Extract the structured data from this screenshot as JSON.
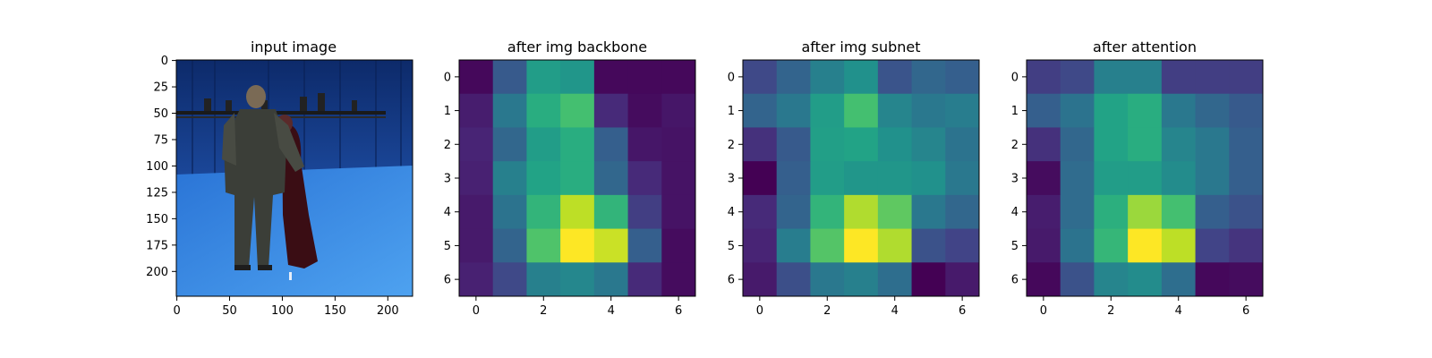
{
  "chart_data": [
    {
      "type": "image",
      "title": "input image",
      "image_description": "person in suit facing away on blue studio floor with a partially visible partner in dark red dress; camera/light rig on a bar across the background",
      "x_ticks": [
        "0",
        "50",
        "100",
        "150",
        "200"
      ],
      "y_ticks": [
        "0",
        "25",
        "50",
        "75",
        "100",
        "125",
        "150",
        "175",
        "200"
      ],
      "xlim": [
        0,
        224
      ],
      "ylim": [
        224,
        0
      ]
    },
    {
      "type": "heatmap",
      "title": "after img backbone",
      "colormap": "viridis",
      "x_ticks": [
        "0",
        "2",
        "4",
        "6"
      ],
      "y_ticks": [
        "0",
        "1",
        "2",
        "3",
        "4",
        "5",
        "6"
      ],
      "values": [
        [
          0.02,
          0.28,
          0.55,
          0.52,
          0.02,
          0.02,
          0.02
        ],
        [
          0.08,
          0.4,
          0.62,
          0.7,
          0.12,
          0.03,
          0.06
        ],
        [
          0.1,
          0.33,
          0.55,
          0.62,
          0.3,
          0.06,
          0.05
        ],
        [
          0.09,
          0.43,
          0.58,
          0.62,
          0.33,
          0.12,
          0.05
        ],
        [
          0.07,
          0.38,
          0.65,
          0.9,
          0.65,
          0.18,
          0.05
        ],
        [
          0.07,
          0.32,
          0.72,
          1.0,
          0.92,
          0.3,
          0.03
        ],
        [
          0.09,
          0.22,
          0.43,
          0.46,
          0.4,
          0.12,
          0.03
        ]
      ]
    },
    {
      "type": "heatmap",
      "title": "after img subnet",
      "colormap": "viridis",
      "x_ticks": [
        "0",
        "2",
        "4",
        "6"
      ],
      "y_ticks": [
        "0",
        "1",
        "2",
        "3",
        "4",
        "5",
        "6"
      ],
      "values": [
        [
          0.22,
          0.32,
          0.43,
          0.5,
          0.26,
          0.33,
          0.3
        ],
        [
          0.32,
          0.4,
          0.55,
          0.7,
          0.45,
          0.4,
          0.42
        ],
        [
          0.14,
          0.28,
          0.56,
          0.58,
          0.5,
          0.45,
          0.38
        ],
        [
          0.0,
          0.3,
          0.55,
          0.52,
          0.52,
          0.5,
          0.4
        ],
        [
          0.12,
          0.32,
          0.65,
          0.88,
          0.75,
          0.4,
          0.33
        ],
        [
          0.1,
          0.42,
          0.73,
          1.0,
          0.88,
          0.25,
          0.2
        ],
        [
          0.07,
          0.24,
          0.4,
          0.43,
          0.36,
          0.0,
          0.07
        ]
      ]
    },
    {
      "type": "heatmap",
      "title": "after attention",
      "colormap": "viridis",
      "x_ticks": [
        "0",
        "2",
        "4",
        "6"
      ],
      "y_ticks": [
        "0",
        "1",
        "2",
        "3",
        "4",
        "5",
        "6"
      ],
      "values": [
        [
          0.18,
          0.22,
          0.43,
          0.43,
          0.18,
          0.18,
          0.18
        ],
        [
          0.3,
          0.38,
          0.58,
          0.62,
          0.4,
          0.33,
          0.28
        ],
        [
          0.14,
          0.33,
          0.58,
          0.62,
          0.45,
          0.4,
          0.3
        ],
        [
          0.03,
          0.35,
          0.55,
          0.55,
          0.48,
          0.4,
          0.3
        ],
        [
          0.08,
          0.35,
          0.63,
          0.85,
          0.7,
          0.3,
          0.25
        ],
        [
          0.07,
          0.38,
          0.66,
          1.0,
          0.9,
          0.2,
          0.15
        ],
        [
          0.02,
          0.25,
          0.45,
          0.48,
          0.36,
          0.02,
          0.03
        ]
      ]
    }
  ]
}
